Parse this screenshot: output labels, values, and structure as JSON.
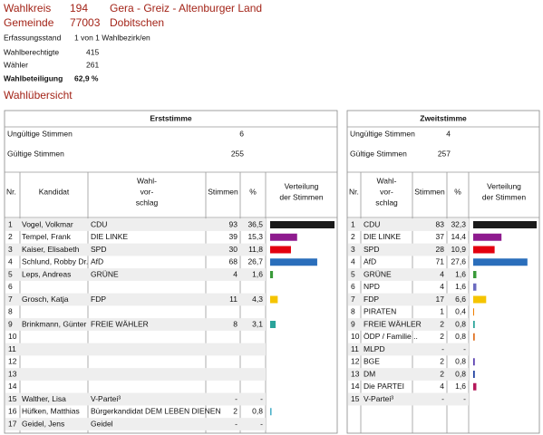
{
  "header": {
    "wahlkreis_label": "Wahlkreis",
    "wahlkreis_nr": "194",
    "wahlkreis_name": "Gera - Greiz - Altenburger Land",
    "gemeinde_label": "Gemeinde",
    "gemeinde_nr": "77003",
    "gemeinde_name": "Dobitschen",
    "info": [
      [
        "Erfassungsstand",
        "1 von 1 Wahlbezirk/en"
      ],
      [
        "Wahlberechtigte",
        "415"
      ],
      [
        "Wähler",
        "261"
      ],
      [
        "Wahlbeteiligung",
        "62,9 %"
      ]
    ]
  },
  "section_title": "Wahlübersicht",
  "erststimme": {
    "title": "Erststimme",
    "invalid_label": "Ungültige Stimmen",
    "invalid": 6,
    "valid_label": "Gültige Stimmen",
    "valid": 255,
    "columns": {
      "nr": "Nr.",
      "name": "Kandidat",
      "party": [
        "Wahl-",
        "vor-",
        "schlag"
      ],
      "votes": "Stimmen",
      "percent": "%",
      "chart": [
        "Verteilung",
        "der Stimmen"
      ]
    },
    "rows": [
      {
        "nr": "1",
        "name": "Vogel, Volkmar",
        "party": "CDU",
        "votes": 93,
        "percent": 36.5,
        "percent_label": "36,5",
        "color": "#1a1a1a"
      },
      {
        "nr": "2",
        "name": "Tempel, Frank",
        "party": "DIE LINKE",
        "votes": 39,
        "percent": 15.3,
        "percent_label": "15,3",
        "color": "#8e1b8e"
      },
      {
        "nr": "3",
        "name": "Kaiser, Elisabeth",
        "party": "SPD",
        "votes": 30,
        "percent": 11.8,
        "percent_label": "11,8",
        "color": "#e3000f"
      },
      {
        "nr": "4",
        "name": "Schlund, Robby Dr.",
        "party": "AfD",
        "votes": 68,
        "percent": 26.7,
        "percent_label": "26,7",
        "color": "#2a6ebb"
      },
      {
        "nr": "5",
        "name": "Leps, Andreas",
        "party": "GRÜNE",
        "votes": 4,
        "percent": 1.6,
        "percent_label": "1,6",
        "color": "#3a9a3a"
      },
      {
        "nr": "6"
      },
      {
        "nr": "7",
        "name": "Grosch, Katja",
        "party": "FDP",
        "votes": 11,
        "percent": 4.3,
        "percent_label": "4,3",
        "color": "#f5c400"
      },
      {
        "nr": "8"
      },
      {
        "nr": "9",
        "name": "Brinkmann, Günter",
        "party": "FREIE WÄHLER",
        "votes": 8,
        "percent": 3.1,
        "percent_label": "3,1",
        "color": "#2aa39a"
      },
      {
        "nr": "10"
      },
      {
        "nr": "11"
      },
      {
        "nr": "12"
      },
      {
        "nr": "13"
      },
      {
        "nr": "14"
      },
      {
        "nr": "15",
        "name": "Walther, Lisa",
        "party": "V-Partei³",
        "votes": "-",
        "percent_label": "-"
      },
      {
        "nr": "16",
        "name": "Hüfken, Matthias",
        "party": "Bürgerkandidat DEM LEBEN DIENEN",
        "votes": 2,
        "percent": 0.8,
        "percent_label": "0,8",
        "color": "#4ab0c8"
      },
      {
        "nr": "17",
        "name": "Geidel, Jens",
        "party": "Geidel",
        "votes": "-",
        "percent_label": "-"
      }
    ]
  },
  "zweitstimme": {
    "title": "Zweitstimme",
    "invalid_label": "Ungültige Stimmen",
    "invalid": 4,
    "valid_label": "Gültige Stimmen",
    "valid": 257,
    "columns": {
      "nr": "Nr.",
      "party": [
        "Wahl-",
        "vor-",
        "schlag"
      ],
      "votes": "Stimmen",
      "percent": "%",
      "chart": [
        "Verteilung",
        "der Stimmen"
      ]
    },
    "rows": [
      {
        "nr": "1",
        "party": "CDU",
        "votes": 83,
        "percent": 32.3,
        "percent_label": "32,3",
        "color": "#1a1a1a"
      },
      {
        "nr": "2",
        "party": "DIE LINKE",
        "votes": 37,
        "percent": 14.4,
        "percent_label": "14,4",
        "color": "#8e1b8e"
      },
      {
        "nr": "3",
        "party": "SPD",
        "votes": 28,
        "percent": 10.9,
        "percent_label": "10,9",
        "color": "#e3000f"
      },
      {
        "nr": "4",
        "party": "AfD",
        "votes": 71,
        "percent": 27.6,
        "percent_label": "27,6",
        "color": "#2a6ebb"
      },
      {
        "nr": "5",
        "party": "GRÜNE",
        "votes": 4,
        "percent": 1.6,
        "percent_label": "1,6",
        "color": "#3a9a3a"
      },
      {
        "nr": "6",
        "party": "NPD",
        "votes": 4,
        "percent": 1.6,
        "percent_label": "1,6",
        "color": "#6b6bc0"
      },
      {
        "nr": "7",
        "party": "FDP",
        "votes": 17,
        "percent": 6.6,
        "percent_label": "6,6",
        "color": "#f5c400"
      },
      {
        "nr": "8",
        "party": "PIRATEN",
        "votes": 1,
        "percent": 0.4,
        "percent_label": "0,4",
        "color": "#f07f00"
      },
      {
        "nr": "9",
        "party": "FREIE WÄHLER",
        "votes": 2,
        "percent": 0.8,
        "percent_label": "0,8",
        "color": "#2aa39a"
      },
      {
        "nr": "10",
        "party": "ÖDP / Familie ..",
        "votes": 2,
        "percent": 0.8,
        "percent_label": "0,8",
        "color": "#e07020"
      },
      {
        "nr": "11",
        "party": "MLPD",
        "votes": "-",
        "percent_label": "-"
      },
      {
        "nr": "12",
        "party": "BGE",
        "votes": 2,
        "percent": 0.8,
        "percent_label": "0,8",
        "color": "#5a3fb0"
      },
      {
        "nr": "13",
        "party": "DM",
        "votes": 2,
        "percent": 0.8,
        "percent_label": "0,8",
        "color": "#1f3fa0"
      },
      {
        "nr": "14",
        "party": "Die PARTEI",
        "votes": 4,
        "percent": 1.6,
        "percent_label": "1,6",
        "color": "#b5185a"
      },
      {
        "nr": "15",
        "party": "V-Partei³",
        "votes": "-",
        "percent_label": "-"
      }
    ]
  }
}
